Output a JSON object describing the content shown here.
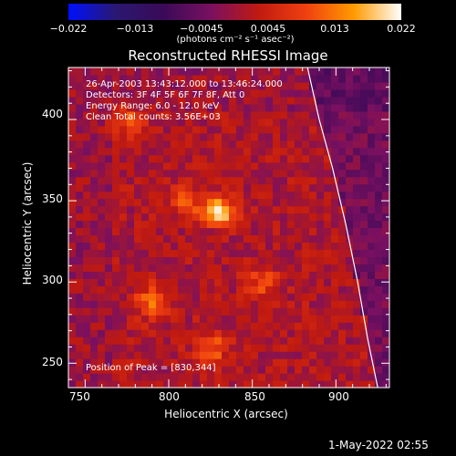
{
  "colorbar": {
    "ticks": [
      "−0.022",
      "−0.013",
      "−0.0045",
      "0.0045",
      "0.013",
      "0.022"
    ],
    "unit_label": "(photons cm⁻² s⁻¹ asec⁻²)",
    "range": [
      -0.022,
      0.022
    ],
    "colormap": [
      "#0010ff",
      "#2a1870",
      "#3a0a58",
      "#7a1060",
      "#c01a10",
      "#f04010",
      "#ff9a00",
      "#ffffff"
    ]
  },
  "title": "Reconstructed RHESSI Image",
  "annotations": {
    "time_range": "26-Apr-2003 13:43:12.000 to 13:46:24.000",
    "detectors": "Detectors: 3F 4F 5F 6F 7F 8F, Att 0",
    "energy_range": "Energy Range: 6.0 - 12.0 keV",
    "clean_counts": "Clean     Total counts: 3.56E+03",
    "peak_position": "Position of Peak = [830,344]"
  },
  "axes": {
    "xlabel": "Heliocentric X (arcsec)",
    "ylabel": "Heliocentric Y (arcsec)",
    "x_ticks": [
      "750",
      "800",
      "850",
      "900"
    ],
    "y_ticks": [
      "250",
      "300",
      "350",
      "400"
    ]
  },
  "footer_date": "1-May-2022 02:55",
  "chart_data": {
    "type": "heatmap",
    "title": "Reconstructed RHESSI Image",
    "xlabel": "Heliocentric X (arcsec)",
    "ylabel": "Heliocentric Y (arcsec)",
    "xlim": [
      740,
      932
    ],
    "ylim": [
      235,
      432
    ],
    "value_range": [
      -0.022,
      0.022
    ],
    "peak": {
      "x": 830,
      "y": 344,
      "value": 0.022
    },
    "secondary_sources": [
      {
        "x": 790,
        "y": 288,
        "value": 0.011
      },
      {
        "x": 810,
        "y": 350,
        "value": 0.009
      },
      {
        "x": 856,
        "y": 300,
        "value": 0.008
      },
      {
        "x": 776,
        "y": 400,
        "value": 0.008
      },
      {
        "x": 826,
        "y": 260,
        "value": 0.01
      }
    ],
    "limb_curve": {
      "x": [
        883,
        890,
        898,
        906,
        913,
        919,
        925
      ],
      "y": [
        432,
        400,
        370,
        335,
        300,
        265,
        235
      ]
    }
  }
}
